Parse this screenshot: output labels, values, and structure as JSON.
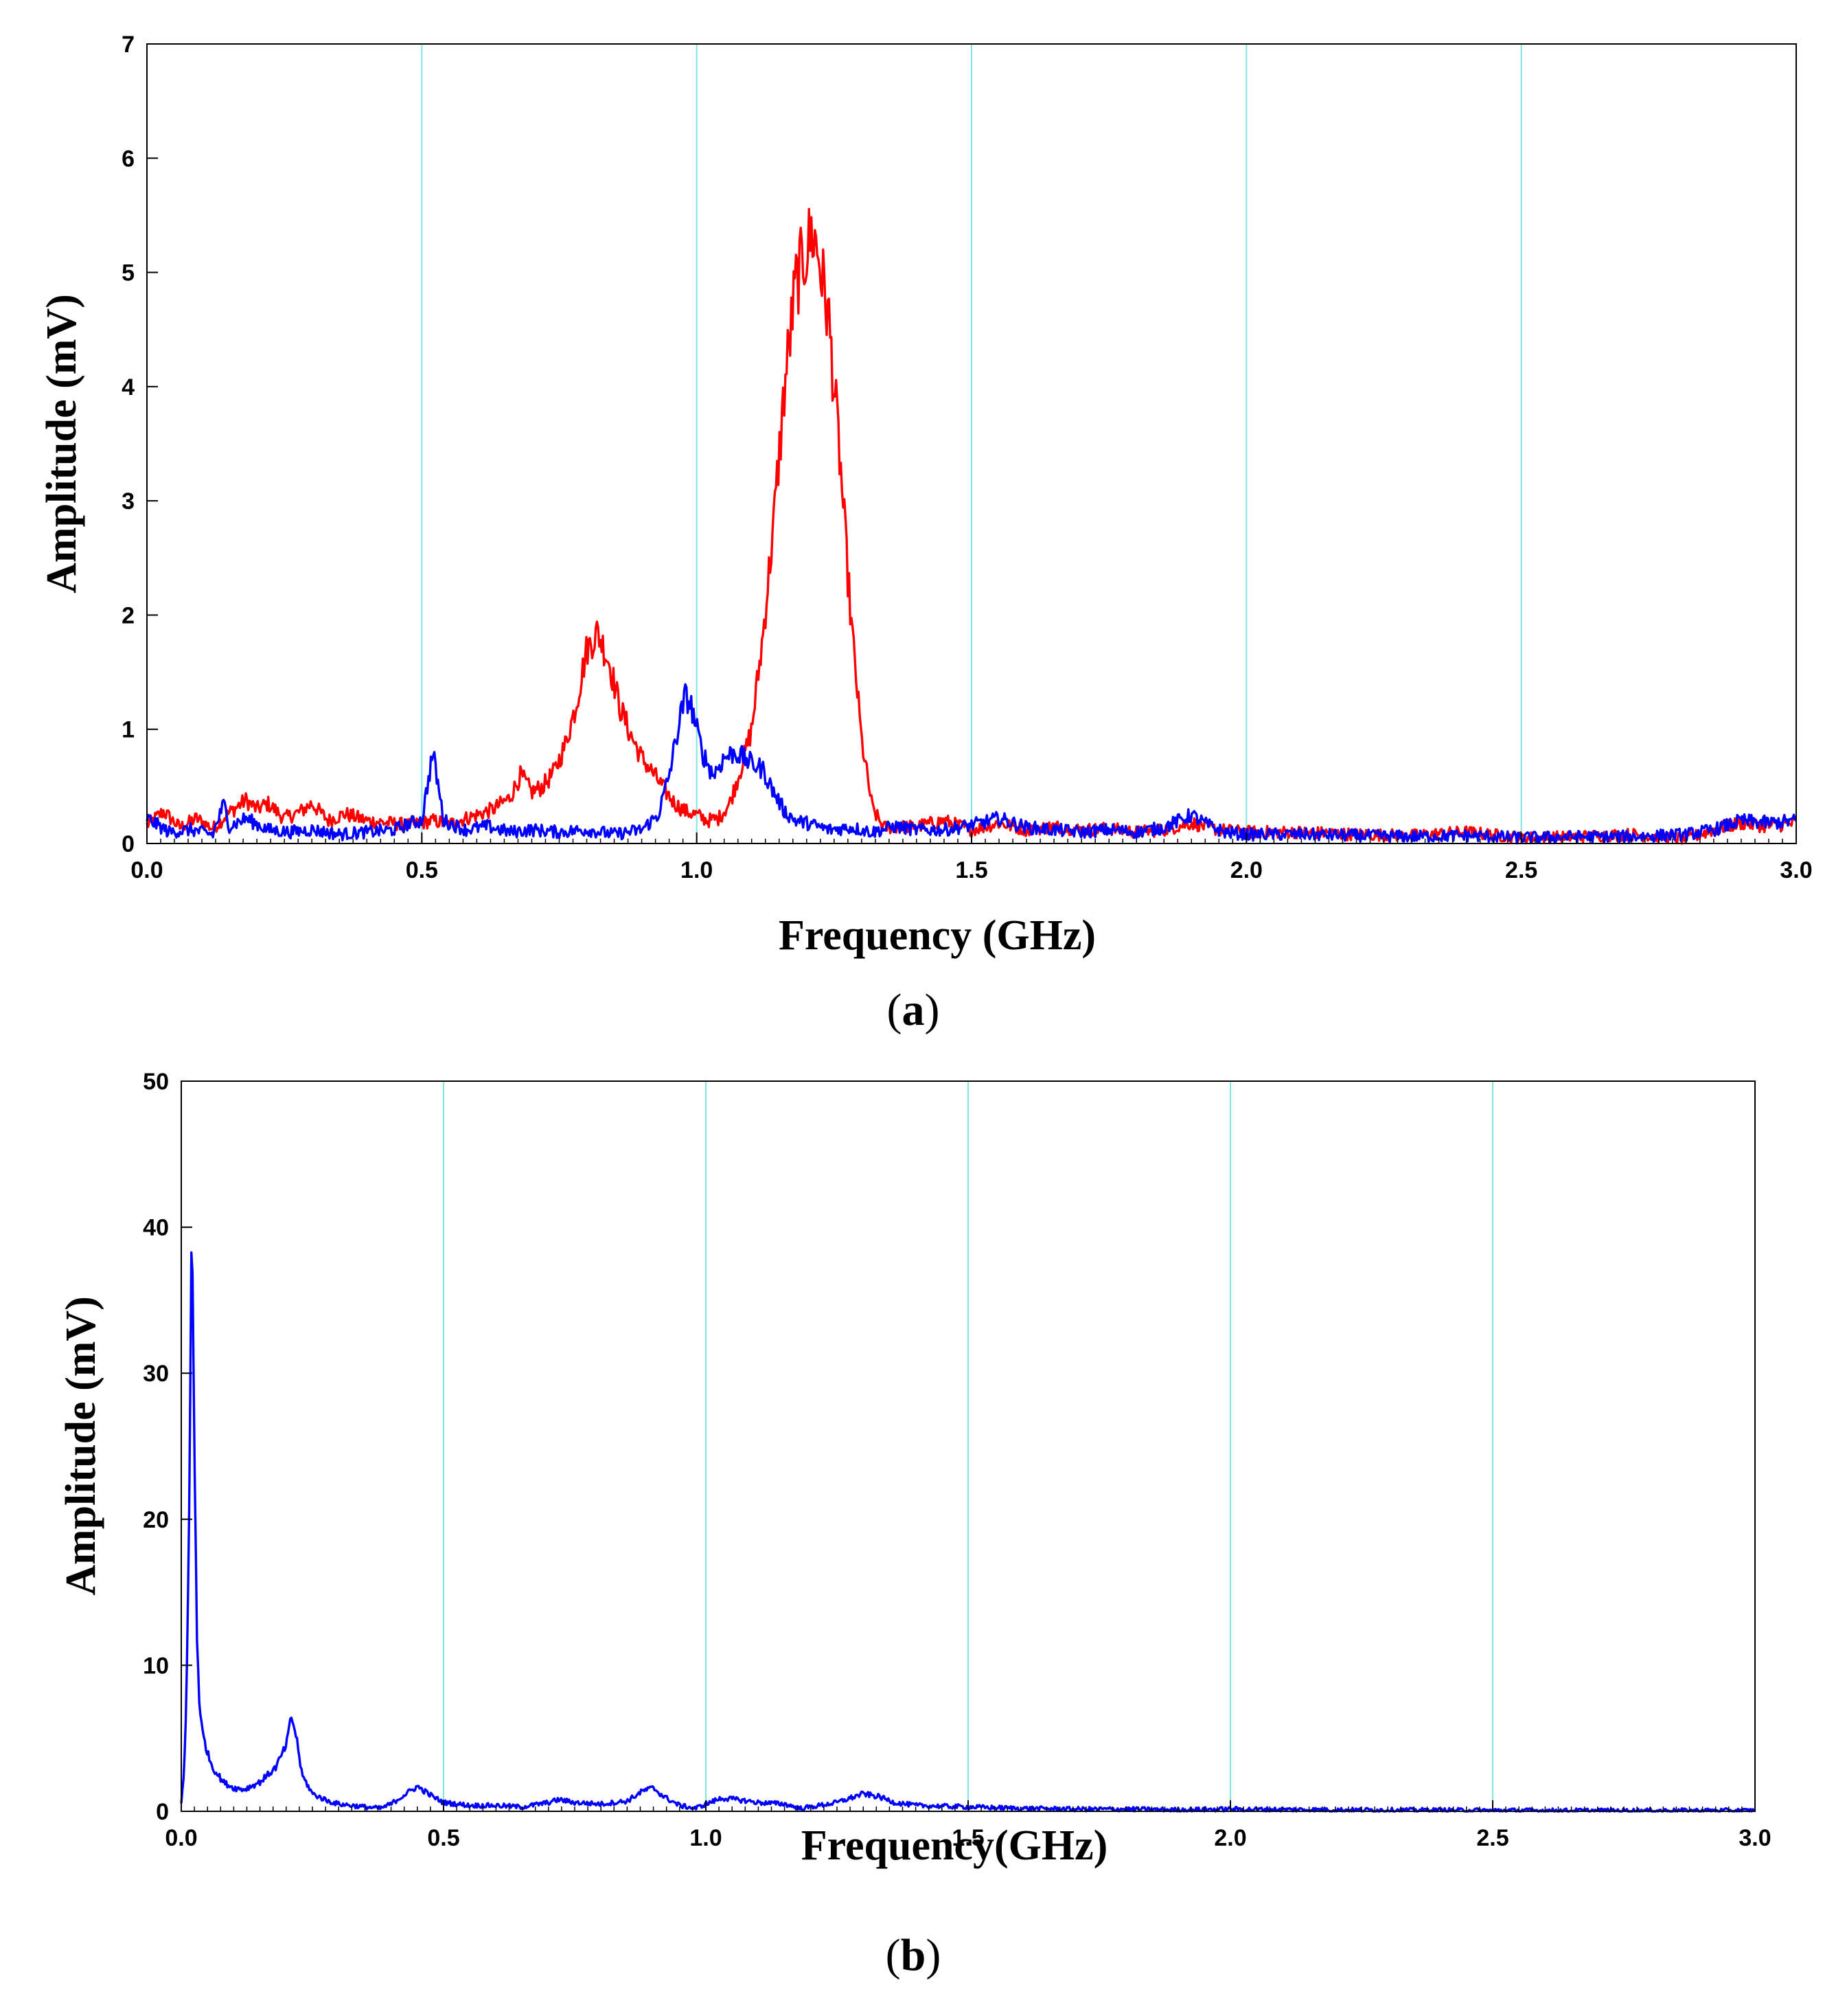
{
  "chart_data": [
    {
      "type": "line",
      "panel_label": "a",
      "xlabel": "Frequency (GHz)",
      "ylabel": "Amplitude (mV)",
      "xlim": [
        0,
        3.0
      ],
      "ylim": [
        0,
        7
      ],
      "xticks": [
        "0.0",
        "0.5",
        "1.0",
        "1.5",
        "2.0",
        "2.5",
        "3.0"
      ],
      "yticks": [
        "0",
        "1",
        "2",
        "3",
        "4",
        "5",
        "6",
        "7"
      ],
      "grid": "vertical",
      "grid_color": "#7fe5e5",
      "series": [
        {
          "color": "#ff0000",
          "points": [
            [
              0.0,
              0.16
            ],
            [
              0.03,
              0.28
            ],
            [
              0.06,
              0.14
            ],
            [
              0.09,
              0.22
            ],
            [
              0.12,
              0.13
            ],
            [
              0.15,
              0.27
            ],
            [
              0.18,
              0.38
            ],
            [
              0.2,
              0.3
            ],
            [
              0.22,
              0.35
            ],
            [
              0.25,
              0.22
            ],
            [
              0.28,
              0.28
            ],
            [
              0.3,
              0.35
            ],
            [
              0.33,
              0.2
            ],
            [
              0.36,
              0.26
            ],
            [
              0.4,
              0.2
            ],
            [
              0.44,
              0.18
            ],
            [
              0.48,
              0.16
            ],
            [
              0.5,
              0.18
            ],
            [
              0.52,
              0.2
            ],
            [
              0.55,
              0.17
            ],
            [
              0.58,
              0.22
            ],
            [
              0.6,
              0.25
            ],
            [
              0.63,
              0.3
            ],
            [
              0.66,
              0.4
            ],
            [
              0.68,
              0.6
            ],
            [
              0.7,
              0.45
            ],
            [
              0.72,
              0.5
            ],
            [
              0.74,
              0.62
            ],
            [
              0.76,
              0.85
            ],
            [
              0.78,
              1.2
            ],
            [
              0.8,
              1.7
            ],
            [
              0.82,
              1.85
            ],
            [
              0.84,
              1.6
            ],
            [
              0.86,
              1.2
            ],
            [
              0.88,
              0.95
            ],
            [
              0.9,
              0.75
            ],
            [
              0.92,
              0.62
            ],
            [
              0.94,
              0.48
            ],
            [
              0.96,
              0.35
            ],
            [
              0.98,
              0.28
            ],
            [
              1.0,
              0.25
            ],
            [
              1.02,
              0.2
            ],
            [
              1.04,
              0.22
            ],
            [
              1.06,
              0.35
            ],
            [
              1.08,
              0.65
            ],
            [
              1.1,
              1.0
            ],
            [
              1.12,
              1.8
            ],
            [
              1.14,
              2.8
            ],
            [
              1.16,
              4.0
            ],
            [
              1.18,
              4.9
            ],
            [
              1.2,
              5.2
            ],
            [
              1.21,
              5.35
            ],
            [
              1.22,
              5.2
            ],
            [
              1.24,
              4.6
            ],
            [
              1.26,
              3.4
            ],
            [
              1.28,
              2.0
            ],
            [
              1.3,
              0.9
            ],
            [
              1.32,
              0.3
            ],
            [
              1.34,
              0.14
            ],
            [
              1.4,
              0.15
            ],
            [
              1.45,
              0.2
            ],
            [
              1.5,
              0.12
            ],
            [
              1.55,
              0.18
            ],
            [
              1.6,
              0.12
            ],
            [
              1.65,
              0.15
            ],
            [
              1.7,
              0.12
            ],
            [
              1.75,
              0.13
            ],
            [
              1.8,
              0.1
            ],
            [
              1.85,
              0.12
            ],
            [
              1.9,
              0.18
            ],
            [
              1.95,
              0.12
            ],
            [
              2.0,
              0.1
            ],
            [
              2.1,
              0.1
            ],
            [
              2.2,
              0.08
            ],
            [
              2.3,
              0.07
            ],
            [
              2.4,
              0.1
            ],
            [
              2.5,
              0.05
            ],
            [
              2.6,
              0.06
            ],
            [
              2.7,
              0.08
            ],
            [
              2.8,
              0.04
            ],
            [
              2.85,
              0.12
            ],
            [
              2.9,
              0.18
            ],
            [
              2.95,
              0.15
            ],
            [
              3.0,
              0.18
            ]
          ]
        },
        {
          "color": "#0000ff",
          "points": [
            [
              0.0,
              0.22
            ],
            [
              0.04,
              0.1
            ],
            [
              0.08,
              0.12
            ],
            [
              0.12,
              0.08
            ],
            [
              0.14,
              0.35
            ],
            [
              0.15,
              0.15
            ],
            [
              0.18,
              0.22
            ],
            [
              0.22,
              0.12
            ],
            [
              0.26,
              0.1
            ],
            [
              0.3,
              0.12
            ],
            [
              0.35,
              0.08
            ],
            [
              0.4,
              0.1
            ],
            [
              0.45,
              0.12
            ],
            [
              0.48,
              0.18
            ],
            [
              0.5,
              0.2
            ],
            [
              0.51,
              0.5
            ],
            [
              0.52,
              0.8
            ],
            [
              0.53,
              0.5
            ],
            [
              0.54,
              0.2
            ],
            [
              0.58,
              0.12
            ],
            [
              0.62,
              0.15
            ],
            [
              0.66,
              0.1
            ],
            [
              0.7,
              0.12
            ],
            [
              0.75,
              0.1
            ],
            [
              0.8,
              0.12
            ],
            [
              0.85,
              0.08
            ],
            [
              0.9,
              0.12
            ],
            [
              0.93,
              0.25
            ],
            [
              0.95,
              0.6
            ],
            [
              0.97,
              1.1
            ],
            [
              0.98,
              1.3
            ],
            [
              0.99,
              1.2
            ],
            [
              1.01,
              0.8
            ],
            [
              1.03,
              0.6
            ],
            [
              1.05,
              0.75
            ],
            [
              1.07,
              0.8
            ],
            [
              1.1,
              0.7
            ],
            [
              1.12,
              0.65
            ],
            [
              1.14,
              0.45
            ],
            [
              1.16,
              0.28
            ],
            [
              1.18,
              0.2
            ],
            [
              1.2,
              0.18
            ],
            [
              1.24,
              0.12
            ],
            [
              1.28,
              0.14
            ],
            [
              1.32,
              0.1
            ],
            [
              1.36,
              0.15
            ],
            [
              1.4,
              0.12
            ],
            [
              1.45,
              0.12
            ],
            [
              1.5,
              0.16
            ],
            [
              1.55,
              0.22
            ],
            [
              1.6,
              0.14
            ],
            [
              1.65,
              0.12
            ],
            [
              1.7,
              0.1
            ],
            [
              1.75,
              0.12
            ],
            [
              1.8,
              0.1
            ],
            [
              1.85,
              0.14
            ],
            [
              1.9,
              0.25
            ],
            [
              1.93,
              0.16
            ],
            [
              1.96,
              0.1
            ],
            [
              2.0,
              0.08
            ],
            [
              2.1,
              0.08
            ],
            [
              2.2,
              0.07
            ],
            [
              2.3,
              0.06
            ],
            [
              2.4,
              0.07
            ],
            [
              2.5,
              0.05
            ],
            [
              2.6,
              0.06
            ],
            [
              2.7,
              0.06
            ],
            [
              2.8,
              0.08
            ],
            [
              2.85,
              0.12
            ],
            [
              2.9,
              0.2
            ],
            [
              2.95,
              0.18
            ],
            [
              3.0,
              0.2
            ]
          ]
        }
      ]
    },
    {
      "type": "line",
      "panel_label": "b",
      "xlabel": "Frequency(GHz)",
      "ylabel": "Amplitude (mV)",
      "xlim": [
        0,
        3.0
      ],
      "ylim": [
        0,
        50
      ],
      "xticks": [
        "0.0",
        "0.5",
        "1.0",
        "1.5",
        "2.0",
        "2.5",
        "3.0"
      ],
      "yticks": [
        "0",
        "10",
        "20",
        "30",
        "40",
        "50"
      ],
      "grid": "vertical",
      "grid_color": "#7fe5e5",
      "series": [
        {
          "color": "#0000ff",
          "points": [
            [
              0.0,
              0.5
            ],
            [
              0.005,
              2.5
            ],
            [
              0.01,
              8
            ],
            [
              0.015,
              20
            ],
            [
              0.02,
              41.2
            ],
            [
              0.025,
              25
            ],
            [
              0.03,
              12
            ],
            [
              0.035,
              7
            ],
            [
              0.04,
              5.5
            ],
            [
              0.05,
              4
            ],
            [
              0.06,
              3
            ],
            [
              0.08,
              2
            ],
            [
              0.1,
              1.6
            ],
            [
              0.12,
              1.5
            ],
            [
              0.15,
              2
            ],
            [
              0.18,
              3
            ],
            [
              0.2,
              4.5
            ],
            [
              0.21,
              6.5
            ],
            [
              0.22,
              5
            ],
            [
              0.23,
              2.5
            ],
            [
              0.25,
              1.2
            ],
            [
              0.28,
              0.7
            ],
            [
              0.3,
              0.5
            ],
            [
              0.35,
              0.3
            ],
            [
              0.38,
              0.2
            ],
            [
              0.4,
              0.5
            ],
            [
              0.42,
              1.0
            ],
            [
              0.45,
              1.7
            ],
            [
              0.48,
              1.0
            ],
            [
              0.5,
              0.6
            ],
            [
              0.55,
              0.4
            ],
            [
              0.6,
              0.4
            ],
            [
              0.65,
              0.3
            ],
            [
              0.7,
              0.6
            ],
            [
              0.72,
              0.8
            ],
            [
              0.75,
              0.6
            ],
            [
              0.8,
              0.5
            ],
            [
              0.85,
              0.7
            ],
            [
              0.88,
              1.4
            ],
            [
              0.9,
              1.6
            ],
            [
              0.92,
              1.0
            ],
            [
              0.95,
              0.4
            ],
            [
              0.98,
              0.2
            ],
            [
              1.0,
              0.5
            ],
            [
              1.03,
              0.9
            ],
            [
              1.06,
              0.8
            ],
            [
              1.1,
              0.6
            ],
            [
              1.15,
              0.5
            ],
            [
              1.18,
              0.2
            ],
            [
              1.2,
              0.3
            ],
            [
              1.25,
              0.6
            ],
            [
              1.3,
              1.2
            ],
            [
              1.33,
              1.0
            ],
            [
              1.36,
              0.6
            ],
            [
              1.4,
              0.4
            ],
            [
              1.5,
              0.3
            ],
            [
              1.6,
              0.2
            ],
            [
              1.7,
              0.15
            ],
            [
              1.8,
              0.15
            ],
            [
              1.9,
              0.1
            ],
            [
              2.0,
              0.15
            ],
            [
              2.2,
              0.1
            ],
            [
              2.4,
              0.08
            ],
            [
              2.6,
              0.05
            ],
            [
              2.8,
              0.05
            ],
            [
              3.0,
              0.05
            ]
          ]
        }
      ]
    }
  ]
}
